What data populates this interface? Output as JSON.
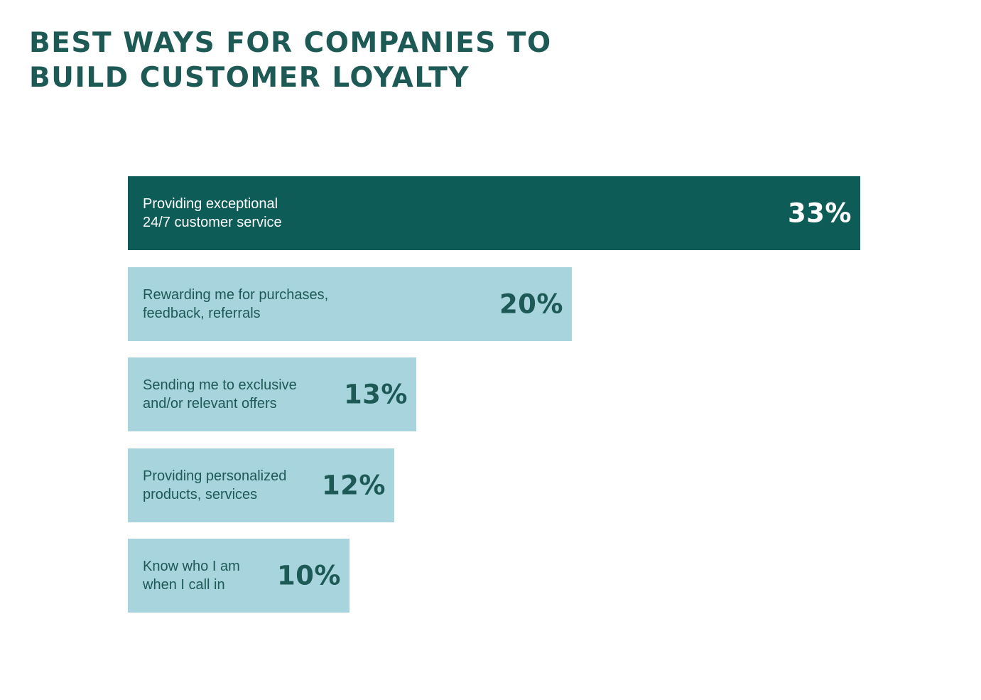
{
  "title": {
    "line1": "BEST WAYS FOR COMPANIES TO",
    "line2": "BUILD CUSTOMER LOYALTY"
  },
  "colors": {
    "title": "#1d5a56",
    "highlight_bar": "#0e5c57",
    "bar": "#a8d4de",
    "highlight_text": "#ffffff",
    "bar_text": "#1d5a56"
  },
  "chart_data": {
    "type": "bar",
    "orientation": "horizontal",
    "title": "BEST WAYS FOR COMPANIES TO BUILD CUSTOMER LOYALTY",
    "xlabel": "",
    "ylabel": "",
    "xlim": [
      0,
      33
    ],
    "grid": false,
    "unit": "%",
    "categories": [
      [
        "Providing exceptional",
        "24/7 customer service"
      ],
      [
        "Rewarding me for purchases,",
        "feedback, referrals"
      ],
      [
        "Sending me to exclusive",
        "and/or relevant offers"
      ],
      [
        "Providing personalized",
        "products, services"
      ],
      [
        "Know who I am",
        "when I call in"
      ]
    ],
    "values": [
      33,
      20,
      13,
      12,
      10
    ],
    "value_labels": [
      "33%",
      "20%",
      "13%",
      "12%",
      "10%"
    ],
    "highlight_index": 0
  }
}
